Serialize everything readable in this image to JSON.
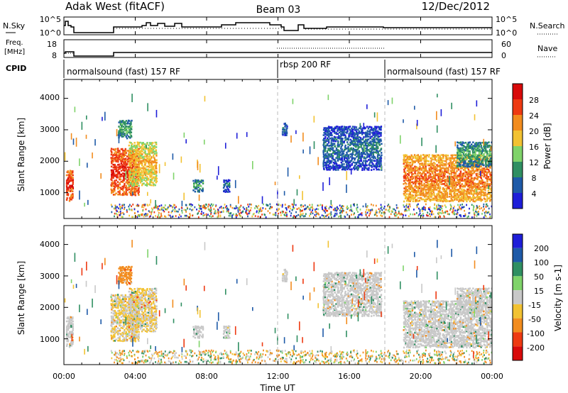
{
  "header": {
    "station": "Adak West (fitACF)",
    "beam": "Beam 03",
    "date": "12/Dec/2012"
  },
  "noise_panel": {
    "left_label": "N.Sky",
    "right_label": "N.Search",
    "left_ticks": [
      "10^5",
      "10^0"
    ],
    "right_ticks": [
      "10^5",
      "10^0"
    ]
  },
  "freq_panel": {
    "left_label_line1": "Freq.",
    "left_label_line2": "[MHz]",
    "right_label": "Nave",
    "left_ticks": [
      "18",
      "8"
    ],
    "right_ticks": [
      "60",
      "0"
    ]
  },
  "cpid": {
    "label": "CPID",
    "segments": [
      {
        "label": "normalsound (fast) 157 RF",
        "start_hour": 0,
        "end_hour": 12
      },
      {
        "label": "rbsp 200 RF",
        "start_hour": 12,
        "end_hour": 18
      },
      {
        "label": "normalsound (fast) 157 RF",
        "start_hour": 18,
        "end_hour": 24
      }
    ]
  },
  "x_axis": {
    "label": "Time UT",
    "range_hours": [
      0,
      24
    ],
    "ticks": [
      {
        "hour": 0,
        "label": "00:00"
      },
      {
        "hour": 4,
        "label": "04:00"
      },
      {
        "hour": 8,
        "label": "08:00"
      },
      {
        "hour": 12,
        "label": "12:00"
      },
      {
        "hour": 16,
        "label": "16:00"
      },
      {
        "hour": 20,
        "label": "20:00"
      },
      {
        "hour": 24,
        "label": "00:00"
      }
    ]
  },
  "power_panel": {
    "ylabel": "Slant Range [km]",
    "yticks": [
      "1000",
      "2000",
      "3000",
      "4000"
    ],
    "colorbar_label": "Power [dB]",
    "colorbar_ticks": [
      "28",
      "24",
      "20",
      "16",
      "12",
      "8",
      "4"
    ],
    "colors": [
      "#1e1ed8",
      "#1e5aa8",
      "#2f8f62",
      "#7fd36a",
      "#f2c232",
      "#f28c1e",
      "#ee3a12",
      "#d80a0a"
    ]
  },
  "velocity_panel": {
    "ylabel": "Slant Range [km]",
    "yticks": [
      "1000",
      "2000",
      "3000",
      "4000"
    ],
    "colorbar_label": "Velocity [m s-1]",
    "colorbar_ticks": [
      "200",
      "100",
      "50",
      "15",
      "-15",
      "-50",
      "-100",
      "-200"
    ],
    "colors": [
      "#1e1ed8",
      "#1e5aa8",
      "#2f8f62",
      "#7fd36a",
      "#c8c8c8",
      "#f2c232",
      "#f28c1e",
      "#ee3a12",
      "#d80a0a"
    ]
  },
  "chart_data": {
    "type": "heatmap",
    "title": "Adak West (fitACF) Beam 03 12/Dec/2012",
    "xlabel": "Time UT",
    "ylabel": "Slant Range [km]",
    "xlim_hours": [
      0,
      24
    ],
    "ylim_km": [
      180,
      4600
    ],
    "echo_regions": [
      {
        "t0": 0.1,
        "t1": 0.5,
        "r0": 700,
        "r1": 1700,
        "power_db": 28,
        "velocity": 0
      },
      {
        "t0": 2.6,
        "t1": 4.2,
        "r0": 900,
        "r1": 2400,
        "power_db": 28,
        "velocity": -15
      },
      {
        "t0": 3.6,
        "t1": 5.2,
        "r0": 1200,
        "r1": 2600,
        "power_db": 20,
        "velocity": -15
      },
      {
        "t0": 3.0,
        "t1": 3.8,
        "r0": 2700,
        "r1": 3300,
        "power_db": 12,
        "velocity": -50
      },
      {
        "t0": 7.2,
        "t1": 7.8,
        "r0": 1000,
        "r1": 1400,
        "power_db": 12,
        "velocity": 0
      },
      {
        "t0": 8.9,
        "t1": 9.3,
        "r0": 1000,
        "r1": 1400,
        "power_db": 8,
        "velocity": 0
      },
      {
        "t0": 12.2,
        "t1": 12.5,
        "r0": 2800,
        "r1": 3200,
        "power_db": 8,
        "velocity": 0
      },
      {
        "t0": 14.5,
        "t1": 17.8,
        "r0": 1700,
        "r1": 3100,
        "power_db": 8,
        "velocity": 0
      },
      {
        "t0": 19.0,
        "t1": 24.0,
        "r0": 700,
        "r1": 2200,
        "power_db": 24,
        "velocity": 0
      },
      {
        "t0": 22.0,
        "t1": 24.0,
        "r0": 1800,
        "r1": 2600,
        "power_db": 12,
        "velocity": 0
      }
    ]
  }
}
